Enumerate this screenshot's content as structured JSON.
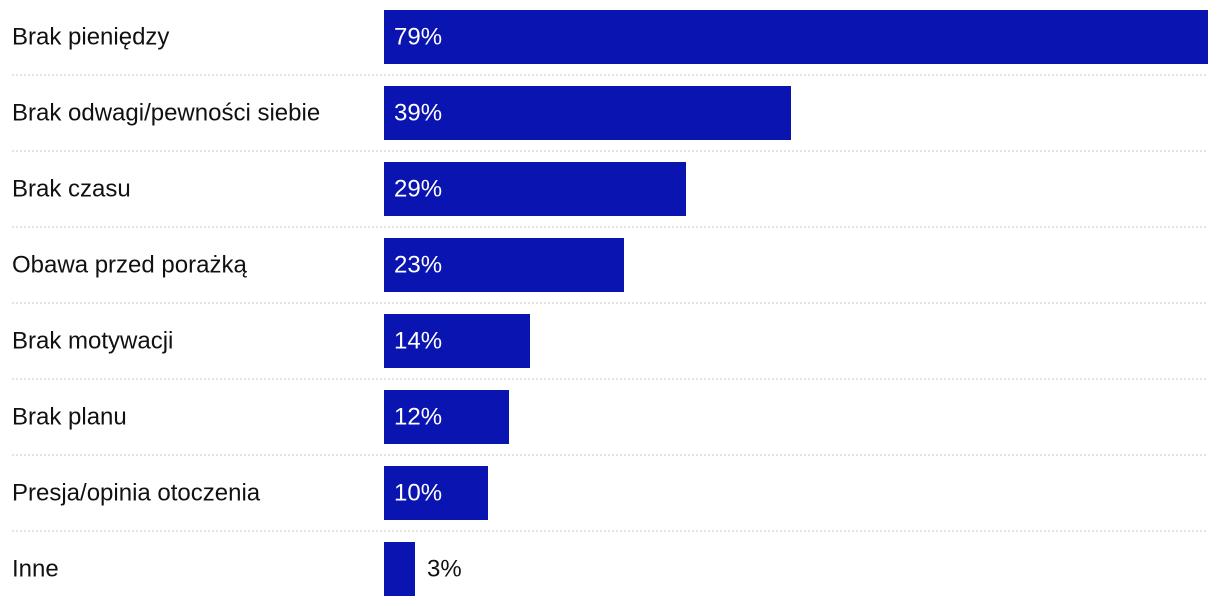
{
  "chart_data": {
    "type": "bar",
    "orientation": "horizontal",
    "categories": [
      "Brak pieniędzy",
      "Brak odwagi/pewności siebie",
      "Brak czasu",
      "Obawa przed porażką",
      "Brak motywacji",
      "Brak planu",
      "Presja/opinia otoczenia",
      "Inne"
    ],
    "values": [
      79,
      39,
      29,
      23,
      14,
      12,
      10,
      3
    ],
    "value_labels": [
      "79%",
      "39%",
      "29%",
      "23%",
      "14%",
      "12%",
      "10%",
      "3%"
    ],
    "unit": "%",
    "title": "",
    "xlabel": "",
    "ylabel": "",
    "xlim": [
      0,
      79
    ],
    "grid": false,
    "legend": "none",
    "bar_color": "#0a14b0",
    "label_inside_color": "#ffffff",
    "label_outside_color": "#111111"
  }
}
